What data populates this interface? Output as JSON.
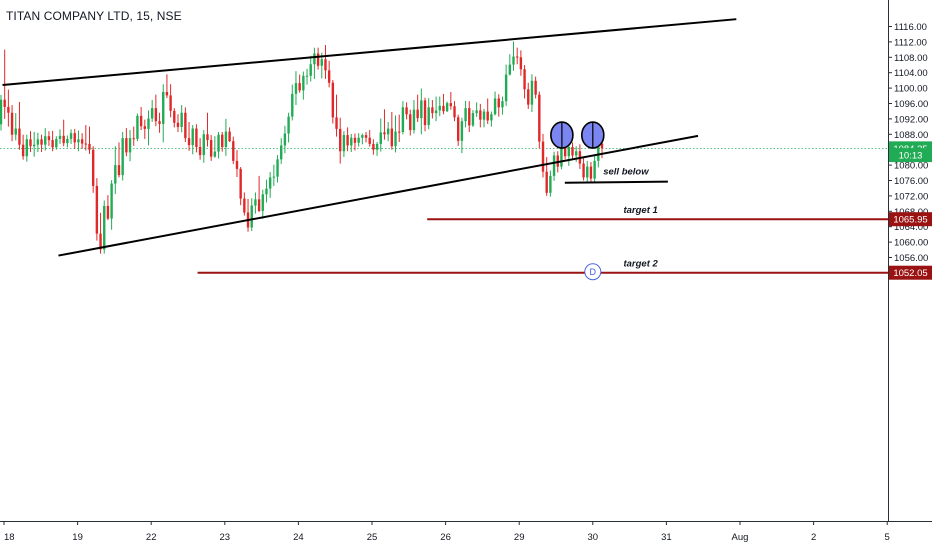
{
  "header": {
    "title": "TITAN COMPANY LTD, 15, NSE"
  },
  "chart_data": {
    "type": "candlestick",
    "symbol_title": "TITAN COMPANY LTD, 15, NSE",
    "y_axis": {
      "min": 1052,
      "max": 1116,
      "ticks": [
        "1116.00",
        "1112.00",
        "1108.00",
        "1104.00",
        "1100.00",
        "1096.00",
        "1092.00",
        "1088.00",
        "1080.00",
        "1076.00",
        "1072.00",
        "1068.00",
        "1064.00",
        "1060.00",
        "1056.00"
      ],
      "price_labels": [
        {
          "text": "1084.35",
          "value": 1084.35,
          "color": "#22ab55",
          "role": "current-price"
        },
        {
          "text": "10:13",
          "value": 1082.6,
          "color": "#22ab55",
          "role": "countdown"
        },
        {
          "text": "1065.95",
          "value": 1065.95,
          "color": "#9b1212",
          "role": "target-1"
        },
        {
          "text": "1052.05",
          "value": 1052.05,
          "color": "#9b1212",
          "role": "target-2"
        }
      ]
    },
    "x_axis": {
      "ticks": [
        "18",
        "19",
        "22",
        "23",
        "24",
        "25",
        "26",
        "29",
        "30",
        "31",
        "Aug",
        "2",
        "5"
      ]
    },
    "session_index": {
      "18": 0,
      "19": 1,
      "22": 2,
      "23": 3,
      "24": 4,
      "25": 5,
      "26": 6,
      "29": 7,
      "30": 8,
      "31": 9,
      "Aug": 10,
      "2": 11,
      "5": 12
    },
    "current_price": 1084.35,
    "trendlines": [
      {
        "name": "upper-channel-line",
        "from": {
          "session": -0.02,
          "price": 1100.8
        },
        "to": {
          "session": 9.95,
          "price": 1117.9
        }
      },
      {
        "name": "lower-channel-line",
        "from": {
          "session": 0.74,
          "price": 1056.5
        },
        "to": {
          "session": 9.43,
          "price": 1087.6
        }
      },
      {
        "name": "neckline",
        "from": {
          "session": 7.62,
          "price": 1075.4
        },
        "to": {
          "session": 9.02,
          "price": 1075.7
        }
      }
    ],
    "levels": [
      {
        "name": "target 1",
        "value": 1065.95,
        "from_session": 5.75,
        "color": "#9b1212"
      },
      {
        "name": "target 2",
        "value": 1052.05,
        "from_session": 2.63,
        "color": "#9b1212"
      }
    ],
    "annotations": [
      {
        "text": "sell below",
        "session": 8.45,
        "price": 1077.5
      },
      {
        "text": "target 1",
        "session": 8.65,
        "price": 1067.5
      },
      {
        "text": "target 2",
        "session": 8.65,
        "price": 1053.7
      }
    ],
    "markers": [
      {
        "type": "circle",
        "session": 7.58,
        "price": 1087.8
      },
      {
        "type": "circle",
        "session": 8.0,
        "price": 1087.8
      },
      {
        "type": "dividend",
        "label": "D",
        "session": 8.0,
        "price": 1052.3
      }
    ],
    "candle_colors": {
      "up": "#22ab55",
      "down": "#e02828"
    },
    "candles": [
      [
        1090.6,
        1092.3,
        1098.2,
        1089.0,
        1097.0
      ],
      [
        1097.0,
        1099.1,
        1110.0,
        1092.0,
        1095.1
      ],
      [
        1095.1,
        1096.1,
        1099.6,
        1090.0,
        1093.6
      ],
      [
        1093.6,
        1095.2,
        1095.6,
        1086.2,
        1087.9
      ],
      [
        1087.9,
        1089.1,
        1093.5,
        1086.4,
        1089.5
      ],
      [
        1089.5,
        1091.1,
        1096.4,
        1084.0,
        1085.3
      ],
      [
        1085.3,
        1086.0,
        1087.9,
        1081.4,
        1082.3
      ],
      [
        1082.3,
        1083.5,
        1087.9,
        1080.9,
        1086.7
      ],
      [
        1086.7,
        1088.3,
        1088.8,
        1083.4,
        1084.9
      ],
      [
        1084.9,
        1085.5,
        1088.6,
        1082.2,
        1085.3
      ],
      [
        1085.3,
        1086.0,
        1088.4,
        1083.4,
        1086.7
      ],
      [
        1086.7,
        1087.0,
        1087.9,
        1083.4,
        1085.3
      ],
      [
        1085.3,
        1086.3,
        1089.6,
        1083.8,
        1087.5
      ],
      [
        1087.5,
        1087.6,
        1088.8,
        1085.0,
        1086.5
      ],
      [
        1086.5,
        1087.9,
        1088.9,
        1083.6,
        1084.6
      ],
      [
        1084.6,
        1085.3,
        1087.5,
        1084.0,
        1086.8
      ],
      [
        1086.8,
        1088.2,
        1089.3,
        1085.5,
        1087.6
      ],
      [
        1087.6,
        1089.3,
        1091.8,
        1084.9,
        1085.7
      ],
      [
        1085.7,
        1087.1,
        1087.7,
        1084.6,
        1086.8
      ],
      [
        1086.8,
        1087.0,
        1089.3,
        1085.5,
        1088.3
      ],
      [
        1088.3,
        1089.4,
        1089.4,
        1084.2,
        1085.9
      ],
      [
        1085.9,
        1086.4,
        1089.0,
        1083.6,
        1086.7
      ],
      [
        1086.7,
        1086.9,
        1088.3,
        1084.2,
        1085.6
      ],
      [
        1085.6,
        1086.9,
        1090.4,
        1083.8,
        1085.5
      ],
      [
        1085.5,
        1086.8,
        1090.0,
        1082.9,
        1084.0
      ],
      [
        1084.0,
        1084.9,
        1084.9,
        1072.8,
        1074.6
      ],
      [
        1074.6,
        1076.1,
        1076.6,
        1060.4,
        1062.2
      ],
      [
        1062.2,
        1063.5,
        1067.6,
        1057.0,
        1058.1
      ],
      [
        1058.1,
        1059.4,
        1070.8,
        1057.0,
        1069.4
      ],
      [
        1069.4,
        1070.0,
        1072.2,
        1065.7,
        1066.1
      ],
      [
        1066.1,
        1066.6,
        1076.1,
        1063.2,
        1075.2
      ],
      [
        1075.2,
        1075.6,
        1084.9,
        1072.5,
        1080.0
      ],
      [
        1080.0,
        1081.5,
        1085.9,
        1076.8,
        1077.4
      ],
      [
        1077.4,
        1078.8,
        1088.6,
        1076.0,
        1087.0
      ],
      [
        1087.0,
        1088.4,
        1089.6,
        1082.3,
        1083.3
      ],
      [
        1083.3,
        1084.0,
        1089.1,
        1081.0,
        1087.0
      ],
      [
        1087.0,
        1088.2,
        1090.0,
        1085.0,
        1086.8
      ],
      [
        1086.8,
        1087.4,
        1093.4,
        1086.2,
        1092.8
      ],
      [
        1092.8,
        1094.5,
        1095.1,
        1089.1,
        1090.1
      ],
      [
        1090.1,
        1091.2,
        1091.8,
        1086.8,
        1089.4
      ],
      [
        1089.4,
        1089.4,
        1094.2,
        1085.1,
        1092.1
      ],
      [
        1092.1,
        1094.0,
        1096.9,
        1091.2,
        1094.8
      ],
      [
        1094.8,
        1095.3,
        1098.3,
        1090.1,
        1091.4
      ],
      [
        1091.4,
        1093.0,
        1093.6,
        1088.4,
        1090.7
      ],
      [
        1090.7,
        1091.6,
        1101.0,
        1085.9,
        1099.0
      ],
      [
        1099.0,
        1100.3,
        1103.6,
        1097.4,
        1098.1
      ],
      [
        1098.1,
        1099.1,
        1101.0,
        1092.4,
        1094.1
      ],
      [
        1094.1,
        1094.4,
        1094.8,
        1089.8,
        1091.0
      ],
      [
        1091.0,
        1092.3,
        1093.2,
        1088.6,
        1089.9
      ],
      [
        1089.9,
        1091.2,
        1095.6,
        1088.5,
        1093.6
      ],
      [
        1093.6,
        1093.6,
        1095.0,
        1086.0,
        1087.0
      ],
      [
        1087.0,
        1088.1,
        1091.2,
        1083.7,
        1085.2
      ],
      [
        1085.2,
        1085.4,
        1090.4,
        1082.8,
        1089.5
      ],
      [
        1089.5,
        1090.5,
        1090.6,
        1083.3,
        1084.7
      ],
      [
        1084.7,
        1085.8,
        1087.0,
        1081.4,
        1082.6
      ],
      [
        1082.6,
        1083.5,
        1089.1,
        1080.6,
        1088.0
      ],
      [
        1088.0,
        1089.6,
        1093.6,
        1084.8,
        1086.5
      ],
      [
        1086.5,
        1087.7,
        1087.8,
        1081.1,
        1082.2
      ],
      [
        1082.2,
        1083.5,
        1087.5,
        1081.9,
        1083.5
      ],
      [
        1083.5,
        1085.2,
        1088.6,
        1081.7,
        1087.9
      ],
      [
        1087.9,
        1088.4,
        1088.6,
        1083.5,
        1084.7
      ],
      [
        1084.7,
        1086.0,
        1092.0,
        1082.4,
        1088.7
      ],
      [
        1088.7,
        1089.6,
        1089.8,
        1086.0,
        1086.2
      ],
      [
        1086.2,
        1086.7,
        1087.4,
        1080.3,
        1081.1
      ],
      [
        1081.1,
        1081.4,
        1083.9,
        1076.9,
        1079.0
      ],
      [
        1079.0,
        1079.5,
        1079.5,
        1069.6,
        1071.3
      ],
      [
        1071.3,
        1072.2,
        1072.9,
        1066.9,
        1067.7
      ],
      [
        1067.7,
        1069.1,
        1071.2,
        1062.7,
        1063.8
      ],
      [
        1063.8,
        1065.2,
        1071.4,
        1062.9,
        1069.5
      ],
      [
        1069.5,
        1070.0,
        1072.9,
        1067.4,
        1071.1
      ],
      [
        1071.1,
        1072.2,
        1077.2,
        1067.8,
        1068.1
      ],
      [
        1068.1,
        1068.2,
        1073.6,
        1066.0,
        1072.4
      ],
      [
        1072.4,
        1072.9,
        1076.2,
        1070.3,
        1073.9
      ],
      [
        1073.9,
        1074.3,
        1078.2,
        1071.5,
        1076.8
      ],
      [
        1076.8,
        1078.4,
        1080.1,
        1074.6,
        1077.0
      ],
      [
        1077.0,
        1077.2,
        1082.6,
        1075.5,
        1081.5
      ],
      [
        1081.5,
        1082.2,
        1087.0,
        1080.3,
        1085.1
      ],
      [
        1085.1,
        1086.1,
        1090.2,
        1083.1,
        1088.2
      ],
      [
        1088.2,
        1089.5,
        1093.6,
        1085.9,
        1092.6
      ],
      [
        1092.6,
        1094.2,
        1100.9,
        1091.6,
        1098.5
      ],
      [
        1098.5,
        1099.8,
        1104.4,
        1095.6,
        1101.3
      ],
      [
        1101.3,
        1102.5,
        1103.5,
        1098.8,
        1099.4
      ],
      [
        1099.4,
        1100.7,
        1104.3,
        1097.0,
        1103.2
      ],
      [
        1103.2,
        1103.5,
        1105.0,
        1100.9,
        1103.2
      ],
      [
        1103.2,
        1103.4,
        1108.4,
        1101.7,
        1106.2
      ],
      [
        1106.2,
        1107.1,
        1110.5,
        1102.4,
        1109.0
      ],
      [
        1109.0,
        1109.7,
        1110.5,
        1104.8,
        1105.8
      ],
      [
        1105.8,
        1107.4,
        1109.2,
        1102.5,
        1107.5
      ],
      [
        1107.5,
        1108.1,
        1111.2,
        1102.4,
        1104.6
      ],
      [
        1104.6,
        1106.0,
        1107.1,
        1100.2,
        1101.4
      ],
      [
        1101.4,
        1101.6,
        1102.1,
        1090.8,
        1092.4
      ],
      [
        1092.4,
        1092.7,
        1098.3,
        1087.4,
        1089.4
      ],
      [
        1089.4,
        1089.9,
        1092.3,
        1080.4,
        1083.6
      ],
      [
        1083.6,
        1083.8,
        1088.8,
        1082.1,
        1087.8
      ],
      [
        1087.8,
        1088.4,
        1089.8,
        1083.6,
        1085.1
      ],
      [
        1085.1,
        1086.2,
        1088.1,
        1083.4,
        1087.1
      ],
      [
        1087.1,
        1087.2,
        1088.2,
        1083.8,
        1085.8
      ],
      [
        1085.8,
        1086.3,
        1088.3,
        1084.8,
        1087.1
      ],
      [
        1087.1,
        1087.5,
        1088.2,
        1085.4,
        1087.8
      ],
      [
        1087.8,
        1088.2,
        1088.6,
        1085.9,
        1087.1
      ],
      [
        1087.1,
        1087.5,
        1089.1,
        1084.8,
        1085.5
      ],
      [
        1085.5,
        1086.3,
        1086.7,
        1082.7,
        1084.0
      ],
      [
        1084.0,
        1084.6,
        1086.0,
        1082.4,
        1085.5
      ],
      [
        1085.5,
        1086.3,
        1092.1,
        1083.5,
        1088.5
      ],
      [
        1088.5,
        1090.2,
        1094.5,
        1086.6,
        1088.0
      ],
      [
        1088.0,
        1089.4,
        1091.2,
        1086.2,
        1089.5
      ],
      [
        1089.5,
        1090.2,
        1093.8,
        1084.0,
        1084.9
      ],
      [
        1084.9,
        1086.4,
        1092.9,
        1083.3,
        1088.7
      ],
      [
        1088.7,
        1090.4,
        1093.1,
        1086.0,
        1088.6
      ],
      [
        1088.6,
        1089.2,
        1096.6,
        1088.0,
        1095.0
      ],
      [
        1095.0,
        1095.6,
        1096.3,
        1091.9,
        1093.2
      ],
      [
        1093.2,
        1093.7,
        1094.4,
        1087.7,
        1089.1
      ],
      [
        1089.1,
        1089.6,
        1096.9,
        1088.2,
        1094.4
      ],
      [
        1094.4,
        1095.7,
        1098.3,
        1091.2,
        1092.2
      ],
      [
        1092.2,
        1093.9,
        1099.9,
        1088.0,
        1096.8
      ],
      [
        1096.8,
        1097.4,
        1097.5,
        1088.8,
        1090.4
      ],
      [
        1090.4,
        1091.7,
        1097.4,
        1089.3,
        1095.0
      ],
      [
        1095.0,
        1096.6,
        1096.9,
        1092.1,
        1093.5
      ],
      [
        1093.5,
        1094.6,
        1097.8,
        1091.4,
        1094.2
      ],
      [
        1094.2,
        1094.9,
        1097.8,
        1092.7,
        1095.4
      ],
      [
        1095.4,
        1095.6,
        1098.5,
        1093.2,
        1094.0
      ],
      [
        1094.0,
        1094.9,
        1096.5,
        1093.8,
        1096.1
      ],
      [
        1096.1,
        1097.4,
        1099.0,
        1094.4,
        1095.3
      ],
      [
        1095.3,
        1095.7,
        1096.6,
        1091.4,
        1092.4
      ],
      [
        1092.4,
        1092.5,
        1093.1,
        1085.0,
        1086.3
      ],
      [
        1086.3,
        1087.9,
        1092.3,
        1083.1,
        1091.4
      ],
      [
        1091.4,
        1092.5,
        1096.7,
        1089.8,
        1094.8
      ],
      [
        1094.8,
        1095.8,
        1096.6,
        1088.6,
        1090.3
      ],
      [
        1090.3,
        1090.6,
        1094.3,
        1089.9,
        1093.5
      ],
      [
        1093.5,
        1095.0,
        1096.3,
        1092.5,
        1094.2
      ],
      [
        1094.2,
        1094.8,
        1095.9,
        1089.8,
        1091.8
      ],
      [
        1091.8,
        1093.4,
        1094.6,
        1089.8,
        1093.9
      ],
      [
        1093.9,
        1094.2,
        1097.3,
        1090.7,
        1091.6
      ],
      [
        1091.6,
        1091.7,
        1093.9,
        1090.0,
        1093.2
      ],
      [
        1093.2,
        1093.5,
        1099.1,
        1092.9,
        1097.3
      ],
      [
        1097.3,
        1098.0,
        1098.4,
        1092.6,
        1095.0
      ],
      [
        1095.0,
        1095.3,
        1097.8,
        1093.1,
        1096.6
      ],
      [
        1096.6,
        1096.7,
        1106.1,
        1095.4,
        1103.5
      ],
      [
        1103.5,
        1104.2,
        1108.8,
        1103.3,
        1106.1
      ],
      [
        1106.1,
        1107.7,
        1112.1,
        1104.5,
        1108.2
      ],
      [
        1108.2,
        1108.5,
        1110.5,
        1106.2,
        1108.0
      ],
      [
        1108.0,
        1109.5,
        1109.8,
        1103.2,
        1104.9
      ],
      [
        1104.9,
        1105.3,
        1106.0,
        1097.3,
        1099.7
      ],
      [
        1099.7,
        1100.9,
        1101.4,
        1094.6,
        1095.7
      ],
      [
        1095.7,
        1097.0,
        1103.6,
        1093.8,
        1101.9
      ],
      [
        1101.9,
        1102.7,
        1103.0,
        1097.3,
        1098.3
      ],
      [
        1098.3,
        1098.4,
        1099.1,
        1084.3,
        1086.1
      ],
      [
        1086.1,
        1087.3,
        1088.1,
        1076.8,
        1078.3
      ],
      [
        1078.3,
        1079.8,
        1082.1,
        1072.0,
        1072.8
      ],
      [
        1072.8,
        1074.1,
        1078.6,
        1071.8,
        1077.2
      ],
      [
        1077.2,
        1077.5,
        1083.5,
        1075.9,
        1082.5
      ],
      [
        1082.5,
        1083.0,
        1083.6,
        1078.1,
        1079.6
      ],
      [
        1079.6,
        1080.8,
        1087.6,
        1078.9,
        1085.6
      ],
      [
        1085.6,
        1086.1,
        1087.6,
        1081.5,
        1082.3
      ],
      [
        1082.3,
        1083.1,
        1086.5,
        1079.8,
        1084.7
      ],
      [
        1084.7,
        1085.2,
        1085.9,
        1081.4,
        1082.5
      ],
      [
        1082.5,
        1083.1,
        1084.9,
        1080.8,
        1083.6
      ],
      [
        1083.6,
        1084.9,
        1085.4,
        1079.0,
        1080.4
      ],
      [
        1080.4,
        1081.4,
        1081.9,
        1076.0,
        1076.8
      ],
      [
        1076.8,
        1077.7,
        1081.1,
        1075.3,
        1079.6
      ],
      [
        1079.6,
        1080.4,
        1080.8,
        1075.3,
        1076.5
      ],
      [
        1076.5,
        1077.2,
        1082.4,
        1075.6,
        1081.1
      ],
      [
        1081.1,
        1082.8,
        1087.8,
        1079.4,
        1085.6
      ],
      [
        1085.6,
        1087.1,
        1087.6,
        1081.8,
        1084.35
      ]
    ]
  }
}
